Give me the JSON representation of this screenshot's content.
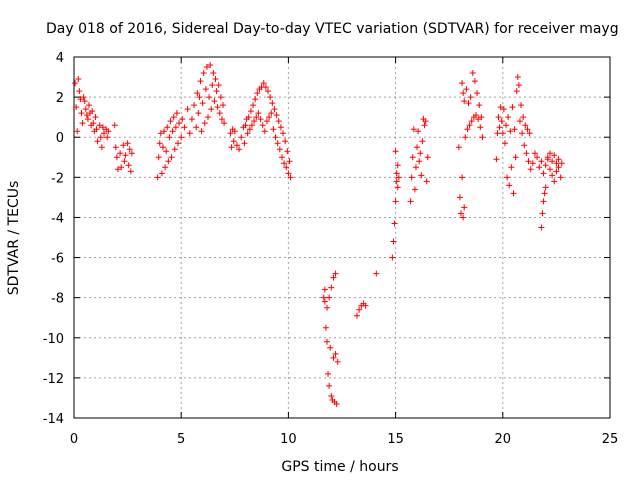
{
  "chart_data": {
    "type": "scatter",
    "title": "Day 018 of 2016, Sidereal Day-to-day VTEC variation (SDTVAR) for receiver mayg",
    "xlabel": "GPS time / hours",
    "ylabel": "SDTVAR / TECUs",
    "xlim": [
      0,
      25
    ],
    "ylim": [
      -14,
      4
    ],
    "xticks": [
      0,
      5,
      10,
      15,
      20,
      25
    ],
    "yticks": [
      -14,
      -12,
      -10,
      -8,
      -6,
      -4,
      -2,
      0,
      2,
      4
    ],
    "grid": true,
    "marker": "+",
    "color": "#ff0000",
    "series": [
      {
        "name": "SDTVAR",
        "points": [
          [
            0.05,
            2.7
          ],
          [
            0.1,
            1.5
          ],
          [
            0.15,
            0.3
          ],
          [
            0.2,
            2.9
          ],
          [
            0.25,
            2.3
          ],
          [
            0.3,
            1.9
          ],
          [
            0.35,
            1.2
          ],
          [
            0.4,
            0.7
          ],
          [
            0.45,
            2.0
          ],
          [
            0.5,
            1.8
          ],
          [
            0.55,
            1.4
          ],
          [
            0.6,
            1.1
          ],
          [
            0.65,
            0.9
          ],
          [
            0.7,
            1.6
          ],
          [
            0.75,
            1.2
          ],
          [
            0.8,
            0.6
          ],
          [
            0.85,
            1.3
          ],
          [
            0.9,
            0.7
          ],
          [
            0.95,
            0.3
          ],
          [
            1.0,
            1.0
          ],
          [
            1.05,
            0.4
          ],
          [
            1.1,
            -0.2
          ],
          [
            1.2,
            0.6
          ],
          [
            1.25,
            0.0
          ],
          [
            1.3,
            -0.5
          ],
          [
            1.35,
            0.5
          ],
          [
            1.4,
            0.2
          ],
          [
            1.5,
            0.4
          ],
          [
            1.55,
            0.0
          ],
          [
            1.6,
            0.3
          ],
          [
            1.9,
            0.6
          ],
          [
            1.95,
            -0.5
          ],
          [
            2.0,
            -1.0
          ],
          [
            2.05,
            -1.6
          ],
          [
            2.15,
            -0.8
          ],
          [
            2.2,
            -1.5
          ],
          [
            2.3,
            -0.4
          ],
          [
            2.35,
            -1.2
          ],
          [
            2.4,
            -0.9
          ],
          [
            2.5,
            -0.3
          ],
          [
            2.55,
            -1.4
          ],
          [
            2.6,
            -0.6
          ],
          [
            2.65,
            -1.7
          ],
          [
            2.7,
            -0.8
          ],
          [
            3.9,
            -2.0
          ],
          [
            3.95,
            -1.0
          ],
          [
            4.0,
            -0.3
          ],
          [
            4.05,
            0.2
          ],
          [
            4.1,
            -1.8
          ],
          [
            4.15,
            -0.5
          ],
          [
            4.2,
            0.3
          ],
          [
            4.25,
            -1.5
          ],
          [
            4.3,
            -0.7
          ],
          [
            4.35,
            0.5
          ],
          [
            4.4,
            -1.2
          ],
          [
            4.45,
            0.0
          ],
          [
            4.5,
            0.8
          ],
          [
            4.55,
            -1.0
          ],
          [
            4.6,
            0.3
          ],
          [
            4.65,
            1.0
          ],
          [
            4.7,
            -0.6
          ],
          [
            4.75,
            0.5
          ],
          [
            4.8,
            1.2
          ],
          [
            4.85,
            -0.3
          ],
          [
            4.9,
            0.7
          ],
          [
            5.0,
            0.0
          ],
          [
            5.05,
            0.9
          ],
          [
            5.15,
            0.5
          ],
          [
            5.3,
            1.4
          ],
          [
            5.4,
            0.2
          ],
          [
            5.5,
            0.9
          ],
          [
            5.6,
            1.6
          ],
          [
            5.7,
            0.5
          ],
          [
            5.75,
            2.2
          ],
          [
            5.8,
            1.2
          ],
          [
            5.85,
            2.0
          ],
          [
            5.9,
            2.8
          ],
          [
            5.95,
            0.3
          ],
          [
            6.0,
            1.7
          ],
          [
            6.05,
            3.2
          ],
          [
            6.1,
            0.7
          ],
          [
            6.15,
            2.4
          ],
          [
            6.2,
            3.5
          ],
          [
            6.25,
            1.0
          ],
          [
            6.3,
            2.0
          ],
          [
            6.35,
            3.6
          ],
          [
            6.4,
            1.4
          ],
          [
            6.45,
            2.6
          ],
          [
            6.5,
            3.2
          ],
          [
            6.55,
            1.8
          ],
          [
            6.6,
            2.9
          ],
          [
            6.65,
            2.3
          ],
          [
            6.7,
            1.5
          ],
          [
            6.75,
            2.6
          ],
          [
            6.8,
            1.2
          ],
          [
            6.85,
            2.0
          ],
          [
            6.9,
            0.9
          ],
          [
            6.95,
            1.6
          ],
          [
            7.0,
            0.7
          ],
          [
            7.3,
            0.2
          ],
          [
            7.35,
            -0.5
          ],
          [
            7.4,
            0.4
          ],
          [
            7.45,
            -0.2
          ],
          [
            7.5,
            0.3
          ],
          [
            7.6,
            -0.4
          ],
          [
            7.7,
            -0.6
          ],
          [
            7.8,
            0.0
          ],
          [
            7.9,
            0.5
          ],
          [
            7.95,
            -0.3
          ],
          [
            8.0,
            0.6
          ],
          [
            8.05,
            0.9
          ],
          [
            8.1,
            0.2
          ],
          [
            8.15,
            1.0
          ],
          [
            8.2,
            0.4
          ],
          [
            8.25,
            1.3
          ],
          [
            8.3,
            0.6
          ],
          [
            8.35,
            1.6
          ],
          [
            8.4,
            0.8
          ],
          [
            8.45,
            1.9
          ],
          [
            8.5,
            1.0
          ],
          [
            8.55,
            2.2
          ],
          [
            8.6,
            1.2
          ],
          [
            8.65,
            2.4
          ],
          [
            8.7,
            0.9
          ],
          [
            8.75,
            2.5
          ],
          [
            8.8,
            0.6
          ],
          [
            8.85,
            2.7
          ],
          [
            8.9,
            0.3
          ],
          [
            8.95,
            2.5
          ],
          [
            9.0,
            0.8
          ],
          [
            9.05,
            2.3
          ],
          [
            9.1,
            1.0
          ],
          [
            9.15,
            2.0
          ],
          [
            9.2,
            1.2
          ],
          [
            9.25,
            1.7
          ],
          [
            9.3,
            0.4
          ],
          [
            9.35,
            1.4
          ],
          [
            9.4,
            0.0
          ],
          [
            9.45,
            1.1
          ],
          [
            9.5,
            -0.3
          ],
          [
            9.55,
            0.8
          ],
          [
            9.6,
            -0.6
          ],
          [
            9.65,
            0.5
          ],
          [
            9.7,
            -1.0
          ],
          [
            9.75,
            0.2
          ],
          [
            9.8,
            -1.3
          ],
          [
            9.85,
            -0.2
          ],
          [
            9.9,
            -1.5
          ],
          [
            9.95,
            -0.7
          ],
          [
            10.0,
            -1.8
          ],
          [
            10.05,
            -1.2
          ],
          [
            10.1,
            -2.0
          ],
          [
            11.65,
            -8.0
          ],
          [
            11.7,
            -7.6
          ],
          [
            11.75,
            -9.5
          ],
          [
            11.8,
            -10.2
          ],
          [
            11.85,
            -11.8
          ],
          [
            11.9,
            -12.4
          ],
          [
            11.95,
            -10.5
          ],
          [
            12.0,
            -12.9
          ],
          [
            12.05,
            -13.1
          ],
          [
            12.1,
            -11.0
          ],
          [
            12.15,
            -13.2
          ],
          [
            12.2,
            -10.8
          ],
          [
            12.25,
            -13.3
          ],
          [
            12.3,
            -11.2
          ],
          [
            11.7,
            -8.2
          ],
          [
            11.8,
            -8.5
          ],
          [
            11.9,
            -8.0
          ],
          [
            12.0,
            -7.5
          ],
          [
            12.1,
            -7.0
          ],
          [
            12.2,
            -6.8
          ],
          [
            13.2,
            -8.9
          ],
          [
            13.3,
            -8.6
          ],
          [
            13.4,
            -8.4
          ],
          [
            13.5,
            -8.3
          ],
          [
            13.6,
            -8.4
          ],
          [
            14.1,
            -6.8
          ],
          [
            14.85,
            -6.0
          ],
          [
            14.9,
            -5.2
          ],
          [
            14.95,
            -4.3
          ],
          [
            15.0,
            -3.2
          ],
          [
            15.05,
            -2.2
          ],
          [
            15.1,
            -1.4
          ],
          [
            15.0,
            -0.7
          ],
          [
            15.05,
            -1.8
          ],
          [
            15.1,
            -2.5
          ],
          [
            15.15,
            -2.0
          ],
          [
            15.7,
            -3.2
          ],
          [
            15.75,
            -2.0
          ],
          [
            15.8,
            -1.0
          ],
          [
            15.85,
            0.4
          ],
          [
            15.9,
            -2.6
          ],
          [
            15.95,
            -1.5
          ],
          [
            16.0,
            -0.5
          ],
          [
            16.05,
            0.3
          ],
          [
            16.1,
            -1.2
          ],
          [
            16.15,
            -0.8
          ],
          [
            16.2,
            -1.9
          ],
          [
            16.25,
            -0.2
          ],
          [
            16.3,
            0.9
          ],
          [
            16.35,
            0.6
          ],
          [
            16.4,
            0.8
          ],
          [
            16.45,
            -2.2
          ],
          [
            16.5,
            -1.0
          ],
          [
            17.95,
            -0.5
          ],
          [
            18.0,
            -3.0
          ],
          [
            18.05,
            -3.8
          ],
          [
            18.1,
            -2.0
          ],
          [
            18.15,
            -4.0
          ],
          [
            18.2,
            -3.5
          ],
          [
            18.1,
            2.7
          ],
          [
            18.15,
            2.2
          ],
          [
            18.2,
            1.8
          ],
          [
            18.25,
            0.0
          ],
          [
            18.3,
            2.4
          ],
          [
            18.35,
            0.4
          ],
          [
            18.4,
            1.7
          ],
          [
            18.45,
            0.6
          ],
          [
            18.5,
            2.0
          ],
          [
            18.55,
            0.8
          ],
          [
            18.6,
            3.2
          ],
          [
            18.65,
            1.0
          ],
          [
            18.7,
            2.8
          ],
          [
            18.75,
            1.1
          ],
          [
            18.8,
            2.2
          ],
          [
            18.85,
            0.9
          ],
          [
            18.9,
            1.6
          ],
          [
            18.95,
            0.5
          ],
          [
            19.0,
            1.0
          ],
          [
            19.05,
            0.0
          ],
          [
            19.7,
            -1.1
          ],
          [
            19.75,
            0.2
          ],
          [
            19.8,
            1.0
          ],
          [
            19.85,
            0.5
          ],
          [
            19.9,
            1.5
          ],
          [
            19.95,
            0.8
          ],
          [
            20.0,
            0.2
          ],
          [
            20.05,
            1.4
          ],
          [
            20.1,
            -0.3
          ],
          [
            20.15,
            0.6
          ],
          [
            20.2,
            -2.0
          ],
          [
            20.25,
            1.0
          ],
          [
            20.3,
            -2.4
          ],
          [
            20.35,
            0.3
          ],
          [
            20.4,
            -1.5
          ],
          [
            20.45,
            1.5
          ],
          [
            20.5,
            -2.8
          ],
          [
            20.55,
            0.4
          ],
          [
            20.6,
            -1.0
          ],
          [
            20.65,
            2.3
          ],
          [
            20.7,
            3.0
          ],
          [
            20.75,
            2.6
          ],
          [
            20.8,
            0.8
          ],
          [
            20.85,
            1.6
          ],
          [
            20.9,
            0.2
          ],
          [
            20.95,
            1.0
          ],
          [
            21.0,
            -0.4
          ],
          [
            21.05,
            0.6
          ],
          [
            21.1,
            -0.8
          ],
          [
            21.15,
            0.4
          ],
          [
            21.2,
            -1.2
          ],
          [
            21.25,
            0.2
          ],
          [
            21.3,
            -1.6
          ],
          [
            21.4,
            -1.3
          ],
          [
            21.5,
            -0.8
          ],
          [
            21.6,
            -1.0
          ],
          [
            21.7,
            -1.5
          ],
          [
            21.8,
            -1.2
          ],
          [
            21.9,
            -1.8
          ],
          [
            22.0,
            -1.4
          ],
          [
            22.1,
            -1.1
          ],
          [
            22.2,
            -1.6
          ],
          [
            22.3,
            -1.9
          ],
          [
            22.4,
            -2.2
          ],
          [
            22.5,
            -1.7
          ],
          [
            22.6,
            -1.5
          ],
          [
            22.7,
            -2.0
          ],
          [
            22.75,
            -1.3
          ],
          [
            21.8,
            -4.5
          ],
          [
            21.85,
            -3.8
          ],
          [
            21.9,
            -3.2
          ],
          [
            21.95,
            -2.8
          ],
          [
            22.0,
            -2.5
          ],
          [
            22.1,
            -1.0
          ],
          [
            22.2,
            -0.8
          ],
          [
            22.3,
            -1.2
          ],
          [
            22.4,
            -0.9
          ],
          [
            22.5,
            -1.3
          ],
          [
            22.6,
            -1.1
          ]
        ]
      }
    ]
  }
}
